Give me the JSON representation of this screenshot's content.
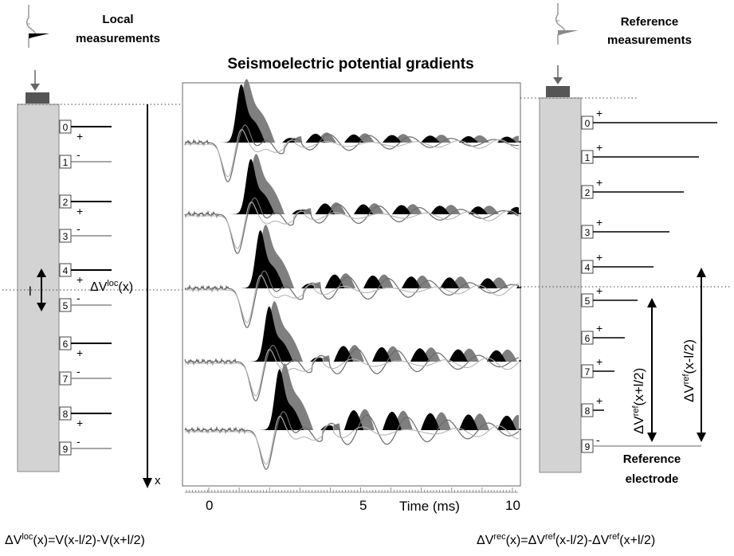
{
  "labels": {
    "local": [
      "Local",
      "measurements"
    ],
    "reference": [
      "Reference",
      "measurements"
    ],
    "title": "Seismoelectric potential gradients",
    "reference_electrode": [
      "Reference",
      "electrode"
    ],
    "dv_loc_prefix": "ΔV",
    "dv_loc_sup": "loc",
    "dv_loc_suffix": "(x)",
    "l_mark": "l",
    "x_mark": "x",
    "dv_ref_minus_prefix": "ΔV",
    "dv_ref_minus_sup": "ref",
    "dv_ref_minus_suffix": "(x-l/2)",
    "dv_ref_plus_prefix": "ΔV",
    "dv_ref_plus_sup": "ref",
    "dv_ref_plus_suffix": "(x+l/2)",
    "plus": "+",
    "minus": "-"
  },
  "formulas": {
    "left": [
      {
        "t": "ΔV"
      },
      {
        "t": "loc",
        "sup": true
      },
      {
        "t": "(x)=V(x-l/2)-V(x+l/2)"
      }
    ],
    "right": [
      {
        "t": "ΔV"
      },
      {
        "t": "rec",
        "sup": true
      },
      {
        "t": "(x)=ΔV"
      },
      {
        "t": "ref",
        "sup": true
      },
      {
        "t": "(x-l/2)-ΔV"
      },
      {
        "t": "ref",
        "sup": true
      },
      {
        "t": "(x+l/2)"
      }
    ]
  },
  "electrodes_left": [
    "0",
    "1",
    "2",
    "3",
    "4",
    "5",
    "6",
    "7",
    "8",
    "9"
  ],
  "electrodes_right": [
    "0",
    "1",
    "2",
    "3",
    "4",
    "5",
    "6",
    "7",
    "8",
    "9"
  ],
  "time_axis": {
    "label": "Time (ms)",
    "ticks": [
      "0",
      "5",
      "10"
    ],
    "tick_values": [
      0,
      5,
      10
    ],
    "range": [
      0,
      10
    ]
  },
  "traces_count": 5,
  "colors": {
    "post": "#555555",
    "gray_fill": "#7f7f7f",
    "black_fill": "#000000",
    "trace_gray": "#888888"
  }
}
